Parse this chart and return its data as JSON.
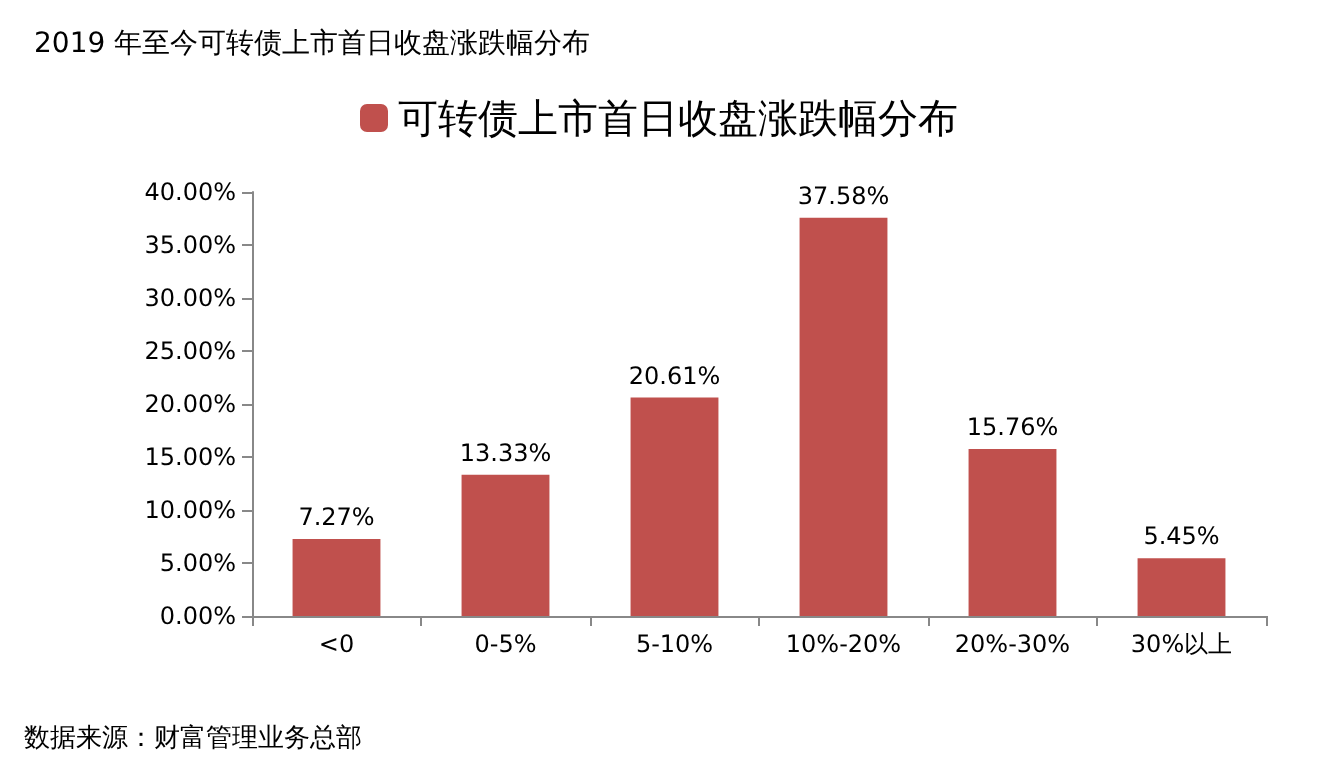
{
  "chart_data": {
    "type": "bar",
    "title": "2019 年至今可转债上市首日收盘涨跌幅分布",
    "categories": [
      "<0",
      "0-5%",
      "5-10%",
      "10%-20%",
      "20%-30%",
      "30%以上"
    ],
    "series": [
      {
        "name": "可转债上市首日收盘涨跌幅分布",
        "color": "#c0504d",
        "values": [
          7.27,
          13.33,
          20.61,
          37.58,
          15.76,
          5.45
        ],
        "value_labels": [
          "7.27%",
          "13.33%",
          "20.61%",
          "37.58%",
          "15.76%",
          "5.45%"
        ]
      }
    ],
    "ylim": [
      0,
      40
    ],
    "yticks": [
      {
        "value": 0,
        "label": "0.00%"
      },
      {
        "value": 5,
        "label": "5.00%"
      },
      {
        "value": 10,
        "label": "10.00%"
      },
      {
        "value": 15,
        "label": "15.00%"
      },
      {
        "value": 20,
        "label": "20.00%"
      },
      {
        "value": 25,
        "label": "25.00%"
      },
      {
        "value": 30,
        "label": "30.00%"
      },
      {
        "value": 35,
        "label": "35.00%"
      },
      {
        "value": 40,
        "label": "40.00%"
      }
    ],
    "legend": "top",
    "annotations": [
      "数据来源：财富管理业务总部"
    ]
  }
}
